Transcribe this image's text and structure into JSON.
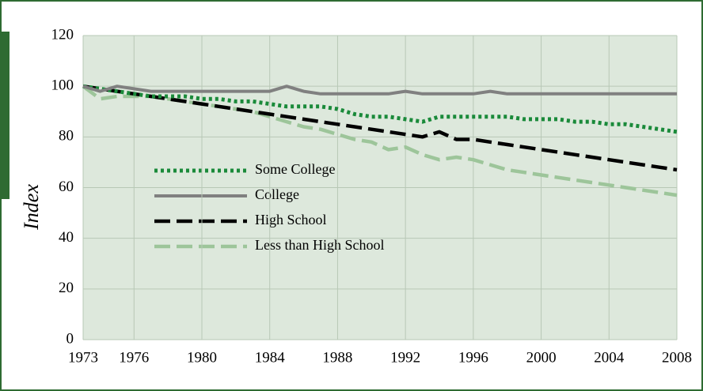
{
  "chart_data": {
    "type": "line",
    "y_label": "Index",
    "x": [
      1973,
      1974,
      1975,
      1976,
      1977,
      1978,
      1979,
      1980,
      1981,
      1982,
      1983,
      1984,
      1985,
      1986,
      1987,
      1988,
      1989,
      1990,
      1991,
      1992,
      1993,
      1994,
      1995,
      1996,
      1997,
      1998,
      1999,
      2000,
      2001,
      2002,
      2003,
      2004,
      2005,
      2006,
      2007,
      2008
    ],
    "xlim": [
      1973,
      2008
    ],
    "xticks": [
      1973,
      1976,
      1980,
      1984,
      1988,
      1992,
      1996,
      2000,
      2004,
      2008
    ],
    "ylim": [
      0,
      120
    ],
    "yticks": [
      0,
      20,
      40,
      60,
      80,
      100,
      120
    ],
    "grid": true,
    "legend": "left",
    "series": [
      {
        "name": "Some College",
        "color": "#1a8a3a",
        "dash": "dotted",
        "values": [
          100,
          99,
          98,
          97,
          96,
          96,
          96,
          95,
          95,
          94,
          94,
          93,
          92,
          92,
          92,
          91,
          89,
          88,
          88,
          87,
          86,
          88,
          88,
          88,
          88,
          88,
          87,
          87,
          87,
          86,
          86,
          85,
          85,
          84,
          83,
          82
        ]
      },
      {
        "name": "College",
        "color": "#808080",
        "dash": "solid",
        "values": [
          100,
          98,
          100,
          99,
          98,
          98,
          98,
          98,
          98,
          98,
          98,
          98,
          100,
          98,
          97,
          97,
          97,
          97,
          97,
          98,
          97,
          97,
          97,
          97,
          98,
          97,
          97,
          97,
          97,
          97,
          97,
          97,
          97,
          97,
          97,
          97
        ]
      },
      {
        "name": "High School",
        "color": "#000000",
        "dash": "dashed",
        "values": [
          100,
          99,
          98,
          97,
          96,
          95,
          94,
          93,
          92,
          91,
          90,
          89,
          88,
          87,
          86,
          85,
          84,
          83,
          82,
          81,
          80,
          82,
          79,
          79,
          78,
          77,
          76,
          75,
          74,
          73,
          72,
          71,
          70,
          69,
          68,
          67
        ]
      },
      {
        "name": "Less than High School",
        "color": "#9dc59a",
        "dash": "dashed",
        "values": [
          100,
          95,
          96,
          96,
          96,
          95,
          94,
          93,
          92,
          91,
          90,
          88,
          86,
          84,
          83,
          81,
          79,
          78,
          75,
          76,
          73,
          71,
          72,
          71,
          69,
          67,
          66,
          65,
          64,
          63,
          62,
          61,
          60,
          59,
          58,
          57
        ]
      }
    ]
  }
}
